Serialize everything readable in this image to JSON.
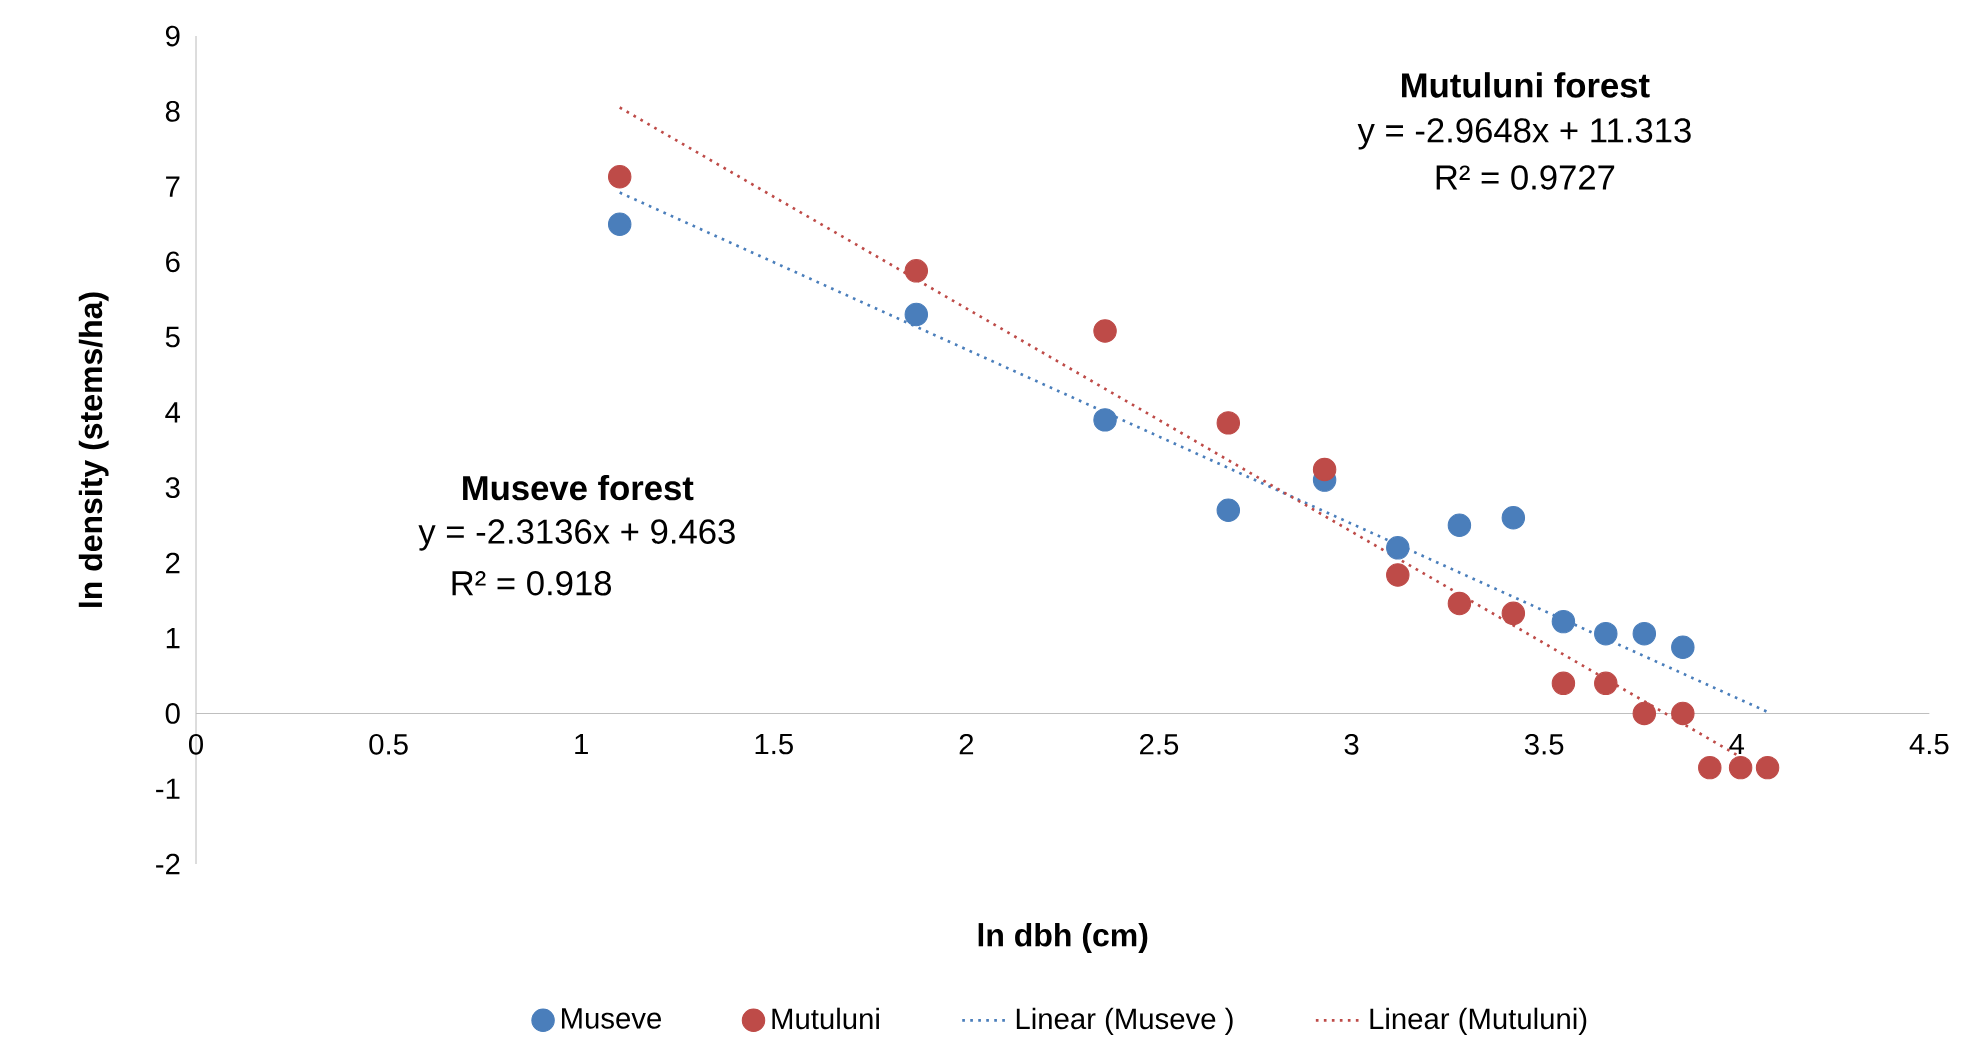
{
  "chart_data": {
    "type": "scatter",
    "xlabel": "ln dbh (cm)",
    "ylabel": "ln density (stems/ha)",
    "xlim": [
      0,
      4.5
    ],
    "ylim": [
      -2,
      9
    ],
    "xticks": [
      0,
      0.5,
      1,
      1.5,
      2,
      2.5,
      3,
      3.5,
      4,
      4.5
    ],
    "yticks": [
      -2,
      -1,
      0,
      1,
      2,
      3,
      4,
      5,
      6,
      7,
      8,
      9
    ],
    "grid": false,
    "legend": "bottom",
    "marker": "circle",
    "annotations": [
      "Mutuluni forest",
      "y = -2.9648x + 11.313",
      "R² = 0.9727",
      "Museve forest",
      "y = -2.3136x + 9.463",
      "R² = 0.918"
    ],
    "series": [
      {
        "name": "Museve",
        "color": "#4a7ebb",
        "x": [
          1.1,
          1.87,
          2.36,
          2.68,
          2.93,
          3.12,
          3.28,
          3.42,
          3.55,
          3.66,
          3.76,
          3.86
        ],
        "values": [
          6.5,
          5.3,
          3.9,
          2.7,
          3.1,
          2.2,
          2.5,
          2.6,
          1.22,
          1.06,
          1.06,
          0.88
        ]
      },
      {
        "name": "Mutuluni",
        "color": "#be4b48",
        "x": [
          1.1,
          1.87,
          2.36,
          2.68,
          2.93,
          3.12,
          3.28,
          3.42,
          3.55,
          3.66,
          3.76,
          3.86,
          3.93,
          4.01,
          4.08
        ],
        "values": [
          7.13,
          5.88,
          5.08,
          3.86,
          3.24,
          1.84,
          1.46,
          1.33,
          0.4,
          0.4,
          0,
          0,
          -0.72,
          -0.72,
          -0.72
        ]
      },
      {
        "name": "Linear (Museve )",
        "type": "line",
        "line_style": "dotted",
        "marker": "none",
        "color": "#4a7ebb",
        "x": [
          1.1,
          4.08
        ],
        "values": [
          6.92,
          0.02
        ]
      },
      {
        "name": "Linear (Mutuluni)",
        "type": "line",
        "line_style": "dotted",
        "marker": "none",
        "color": "#be4b48",
        "x": [
          1.1,
          4.01
        ],
        "values": [
          8.05,
          -0.58
        ]
      }
    ]
  }
}
